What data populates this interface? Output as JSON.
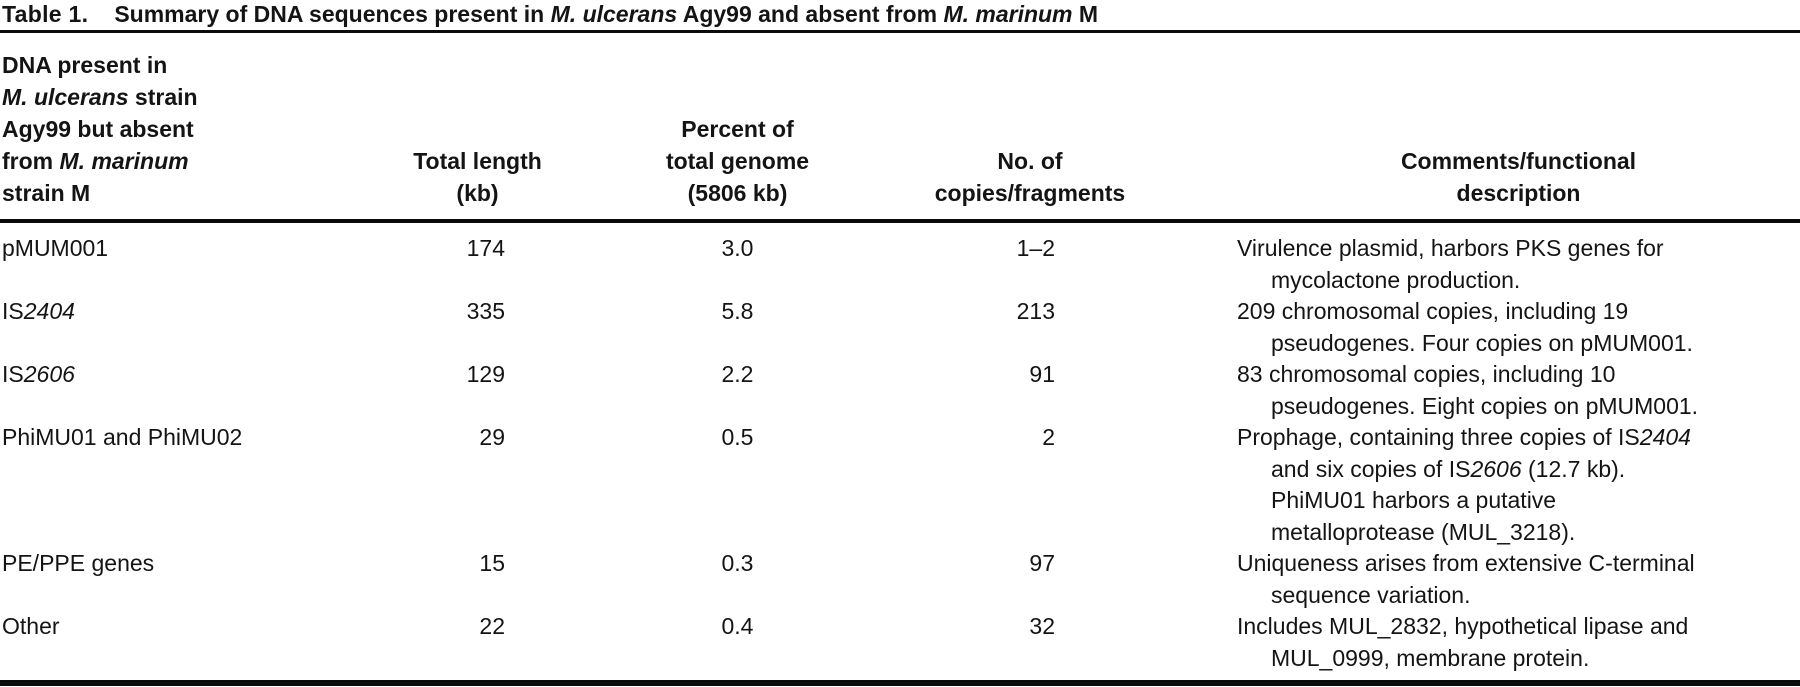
{
  "title": {
    "number": "Table 1.",
    "text_segments": [
      {
        "t": "Summary of DNA sequences present in "
      },
      {
        "t": "M. ulcerans",
        "i": true
      },
      {
        "t": " Agy99 and absent from "
      },
      {
        "t": "M. marinum",
        "i": true
      },
      {
        "t": " M"
      }
    ]
  },
  "table": {
    "headers": {
      "col1_lines": [
        [
          {
            "t": "DNA present in"
          }
        ],
        [
          {
            "t": "M. ulcerans",
            "i": true
          },
          {
            "t": " strain"
          }
        ],
        [
          {
            "t": "Agy99 but absent"
          }
        ],
        [
          {
            "t": "from "
          },
          {
            "t": "M. marinum",
            "i": true
          }
        ],
        [
          {
            "t": "strain M"
          }
        ]
      ],
      "col2_lines": [
        [
          {
            "t": "Total length"
          }
        ],
        [
          {
            "t": "(kb)"
          }
        ]
      ],
      "col3_lines": [
        [
          {
            "t": "Percent of"
          }
        ],
        [
          {
            "t": "total genome"
          }
        ],
        [
          {
            "t": "(5806 kb)"
          }
        ]
      ],
      "col4_lines": [
        [
          {
            "t": "No. of"
          }
        ],
        [
          {
            "t": "copies/fragments"
          }
        ]
      ],
      "col5_lines": [
        [
          {
            "t": "Comments/functional"
          }
        ],
        [
          {
            "t": "description"
          }
        ]
      ]
    },
    "rows": [
      {
        "label": [
          {
            "t": "pMUM001"
          }
        ],
        "total_length_kb": "174",
        "percent_of_genome": "3.0",
        "copies_fragments": "1–2",
        "comment_lines": [
          [
            {
              "t": "Virulence plasmid, harbors PKS genes for"
            }
          ],
          [
            {
              "t": "mycolactone production."
            }
          ]
        ]
      },
      {
        "label": [
          {
            "t": "IS"
          },
          {
            "t": "2404",
            "i": true
          }
        ],
        "total_length_kb": "335",
        "percent_of_genome": "5.8",
        "copies_fragments": "213",
        "comment_lines": [
          [
            {
              "t": "209 chromosomal copies, including 19"
            }
          ],
          [
            {
              "t": "pseudogenes. Four copies on pMUM001."
            }
          ]
        ]
      },
      {
        "label": [
          {
            "t": "IS"
          },
          {
            "t": "2606",
            "i": true
          }
        ],
        "total_length_kb": "129",
        "percent_of_genome": "2.2",
        "copies_fragments": "91",
        "comment_lines": [
          [
            {
              "t": "83 chromosomal copies, including 10"
            }
          ],
          [
            {
              "t": "pseudogenes. Eight copies on pMUM001."
            }
          ]
        ]
      },
      {
        "label": [
          {
            "t": "PhiMU01 and PhiMU02"
          }
        ],
        "total_length_kb": "29",
        "percent_of_genome": "0.5",
        "copies_fragments": "2",
        "comment_lines": [
          [
            {
              "t": "Prophage, containing three copies of IS"
            },
            {
              "t": "2404",
              "i": true
            }
          ],
          [
            {
              "t": "and six copies of IS"
            },
            {
              "t": "2606",
              "i": true
            },
            {
              "t": " (12.7 kb)."
            }
          ],
          [
            {
              "t": "PhiMU01 harbors a putative"
            }
          ],
          [
            {
              "t": "metalloprotease (MUL_3218)."
            }
          ]
        ]
      },
      {
        "label": [
          {
            "t": "PE/PPE genes"
          }
        ],
        "total_length_kb": "15",
        "percent_of_genome": "0.3",
        "copies_fragments": "97",
        "comment_lines": [
          [
            {
              "t": "Uniqueness arises from extensive C-terminal"
            }
          ],
          [
            {
              "t": "sequence variation."
            }
          ]
        ]
      },
      {
        "label": [
          {
            "t": "Other"
          }
        ],
        "total_length_kb": "22",
        "percent_of_genome": "0.4",
        "copies_fragments": "32",
        "comment_lines": [
          [
            {
              "t": "Includes MUL_2832, hypothetical lipase and"
            }
          ],
          [
            {
              "t": "MUL_0999, membrane protein."
            }
          ]
        ]
      }
    ]
  },
  "colors": {
    "text": "#141414",
    "rule": "#0a0a0a",
    "background": "#ffffff"
  }
}
